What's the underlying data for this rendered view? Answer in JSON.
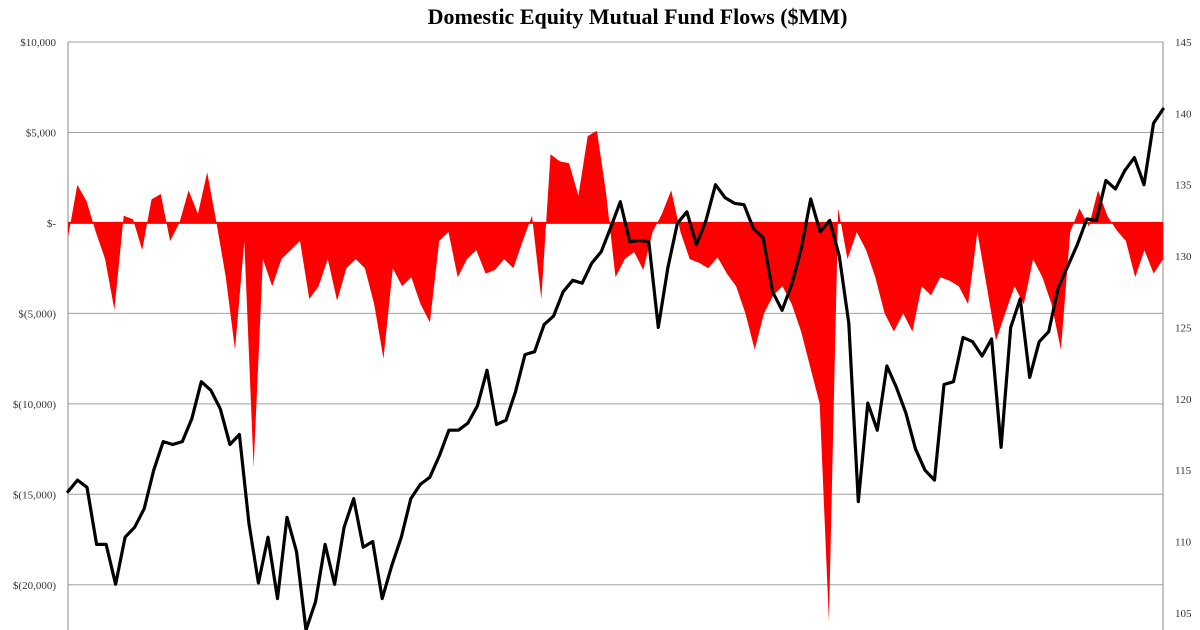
{
  "chart_data": {
    "type": "area",
    "title": "Domestic Equity Mutual Fund Flows ($MM)",
    "grid": true,
    "colors": {
      "flows": "#ff0000",
      "index": "#000000",
      "grid": "#a0a0a0",
      "axis": "#888888"
    },
    "y_left": {
      "lim": [
        -22500,
        10000
      ],
      "ticks": [
        10000,
        5000,
        0,
        -5000,
        -10000,
        -15000,
        -20000
      ],
      "tick_labels": [
        "$10,000",
        "$5,000",
        "$-",
        "$(5,000)",
        "$(10,000)",
        "$(15,000)",
        "$(20,000)"
      ]
    },
    "y_right": {
      "lim": [
        103.8,
        145
      ],
      "ticks": [
        145,
        140,
        135,
        130,
        125,
        120,
        115,
        110,
        105
      ],
      "tick_labels": [
        "145",
        "140",
        "135",
        "130",
        "125",
        "120",
        "115",
        "110",
        "105"
      ]
    },
    "series": [
      {
        "axis": "left",
        "style": "area",
        "values": [
          -800,
          2100,
          1200,
          -500,
          -2000,
          -4800,
          400,
          200,
          -1500,
          1300,
          1600,
          -1000,
          0,
          1800,
          500,
          2800,
          0,
          -3000,
          -7000,
          -1000,
          -13500,
          -2000,
          -3500,
          -2000,
          -1500,
          -1000,
          -4200,
          -3500,
          -2000,
          -4300,
          -2500,
          -2000,
          -2500,
          -4500,
          -7500,
          -2500,
          -3500,
          -3000,
          -4500,
          -5500,
          -1000,
          -500,
          -3000,
          -2000,
          -1500,
          -2800,
          -2600,
          -2000,
          -2500,
          -1000,
          400,
          -4200,
          3800,
          3400,
          3300,
          1500,
          4800,
          5100,
          1600,
          -3000,
          -2000,
          -1600,
          -2600,
          -500,
          500,
          1800,
          -500,
          -2000,
          -2200,
          -2500,
          -1900,
          -2800,
          -3500,
          -5000,
          -7000,
          -5000,
          -4000,
          -3500,
          -4500,
          -6000,
          -8000,
          -10000,
          -22000,
          800,
          -2000,
          -500,
          -1500,
          -3000,
          -5000,
          -6000,
          -5000,
          -6000,
          -3500,
          -4000,
          -3000,
          -3200,
          -3500,
          -4500,
          -500,
          -3500,
          -6500,
          -5000,
          -3500,
          -4500,
          -2000,
          -3000,
          -4500,
          -7000,
          -500,
          800,
          -200,
          1800,
          400,
          -400,
          -1000,
          -3000,
          -1500,
          -2800,
          -2000
        ]
      },
      {
        "axis": "right",
        "style": "line",
        "values": [
          113.5,
          114.3,
          113.8,
          109.8,
          109.8,
          107.0,
          110.3,
          111.0,
          112.3,
          115.0,
          117.0,
          116.8,
          117.0,
          118.6,
          121.2,
          120.6,
          119.3,
          116.8,
          117.5,
          111.3,
          107.1,
          110.3,
          106.0,
          111.7,
          109.3,
          103.8,
          105.8,
          109.8,
          107.0,
          111.0,
          113.0,
          109.6,
          110.0,
          106.0,
          108.3,
          110.3,
          113.0,
          114.0,
          114.5,
          116.0,
          117.8,
          117.8,
          118.3,
          119.5,
          122.0,
          118.2,
          118.5,
          120.5,
          123.1,
          123.3,
          125.2,
          125.8,
          127.5,
          128.3,
          128.1,
          129.5,
          130.3,
          132.0,
          133.8,
          131.0,
          131.1,
          131.0,
          125.0,
          129.2,
          132.3,
          133.1,
          130.8,
          132.5,
          135.0,
          134.1,
          133.7,
          133.6,
          131.9,
          131.3,
          127.5,
          126.2,
          128.0,
          130.5,
          134.0,
          131.7,
          132.5,
          130.0,
          125.3,
          112.8,
          119.7,
          117.8,
          122.3,
          120.8,
          119.0,
          116.5,
          115.0,
          114.3,
          121.0,
          121.2,
          124.3,
          124.0,
          123.0,
          124.2,
          116.6,
          125.0,
          127.0,
          121.5,
          124.0,
          124.7,
          127.8,
          129.3,
          130.8,
          132.6,
          132.5,
          135.3,
          134.7,
          136.0,
          136.9,
          135.0,
          139.3,
          140.3
        ]
      }
    ]
  }
}
